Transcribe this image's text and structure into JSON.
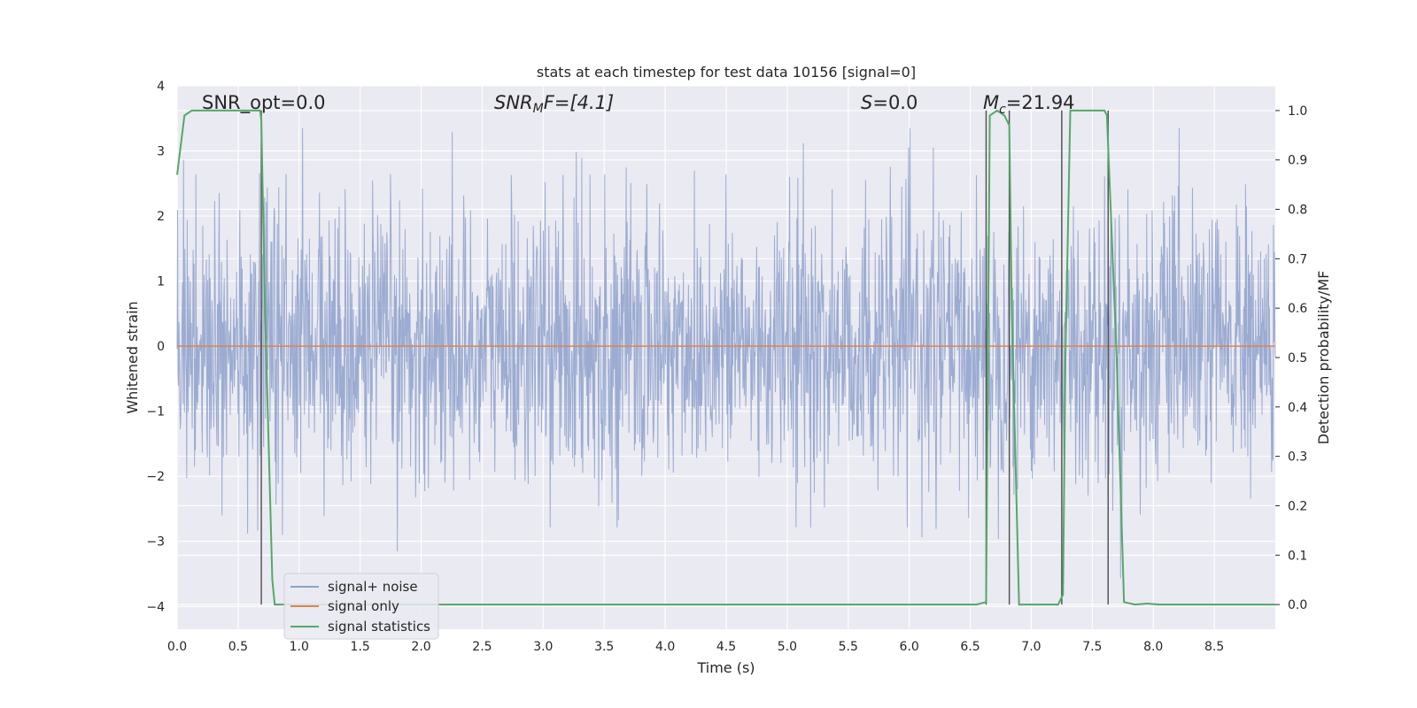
{
  "chart_data": {
    "type": "line",
    "title": "stats at each timestep for test data 10156 [signal=0]",
    "xlabel": "Time (s)",
    "ylabel": "Whitened strain",
    "y2label": "Detection probability/MF",
    "xlim": [
      0.0,
      9.0
    ],
    "ylim": [
      -4.35,
      4.0
    ],
    "y2lim": [
      -0.05,
      1.05
    ],
    "xticks": [
      "0.0",
      "0.5",
      "1.0",
      "1.5",
      "2.0",
      "2.5",
      "3.0",
      "3.5",
      "4.0",
      "4.5",
      "5.0",
      "5.5",
      "6.0",
      "6.5",
      "7.0",
      "7.5",
      "8.0",
      "8.5"
    ],
    "yticks": [
      "4",
      "3",
      "2",
      "1",
      "0",
      "−1",
      "−2",
      "−3",
      "−4"
    ],
    "y2ticks": [
      "1.0",
      "0.9",
      "0.8",
      "0.7",
      "0.6",
      "0.5",
      "0.4",
      "0.3",
      "0.2",
      "0.1",
      "0.0"
    ],
    "grid": true,
    "legend_position": "lower-left",
    "annotations": {
      "snr_opt": "SNR_opt=0.0",
      "snr_mf_base": "SNR",
      "snr_mf_sub": "M",
      "snr_mf_rest": "F=[4.1]",
      "s_sym": "S",
      "s_rest": "=0.0",
      "mc_sym": "M",
      "mc_sub": "c",
      "mc_rest": "=21.94"
    },
    "series": [
      {
        "name": "signal+ noise",
        "color": "#8da0cb",
        "description_values": "noisy whitened strain, roughly within [-3.9, 3.4]"
      },
      {
        "name": "signal only",
        "color": "#dd8452",
        "values_constant": 0.0
      },
      {
        "name": "signal statistics",
        "color": "#55a868",
        "x": [
          0.0,
          0.06,
          0.12,
          0.3,
          0.5,
          0.68,
          0.69,
          0.72,
          0.78,
          0.8,
          1.0,
          3.0,
          5.0,
          6.55,
          6.63,
          6.66,
          6.72,
          6.78,
          6.82,
          6.84,
          6.9,
          7.0,
          7.22,
          7.26,
          7.28,
          7.32,
          7.5,
          7.6,
          7.62,
          7.7,
          7.76,
          7.85,
          7.95,
          8.05,
          8.5,
          9.0
        ],
        "values": [
          0.87,
          0.99,
          1.0,
          1.0,
          1.0,
          1.0,
          0.98,
          0.6,
          0.05,
          0.0,
          0.0,
          0.0,
          0.0,
          0.0,
          0.005,
          0.99,
          1.0,
          0.99,
          0.97,
          0.6,
          0.0,
          0.0,
          0.0,
          0.02,
          0.5,
          1.0,
          1.0,
          1.0,
          0.99,
          0.5,
          0.005,
          0.0,
          0.002,
          0.0,
          0.0,
          0.0
        ]
      }
    ],
    "vertical_markers_x": [
      0.69,
      6.63,
      6.82,
      7.25,
      7.63
    ]
  },
  "legend": {
    "items": [
      "signal+ noise",
      "signal only",
      "signal statistics"
    ]
  },
  "colors": {
    "background": "#eaeaf2",
    "grid": "#ffffff",
    "noise": "#8da0cb",
    "signal": "#dd8452",
    "stats": "#55a868",
    "marker": "#4d4d4d"
  }
}
